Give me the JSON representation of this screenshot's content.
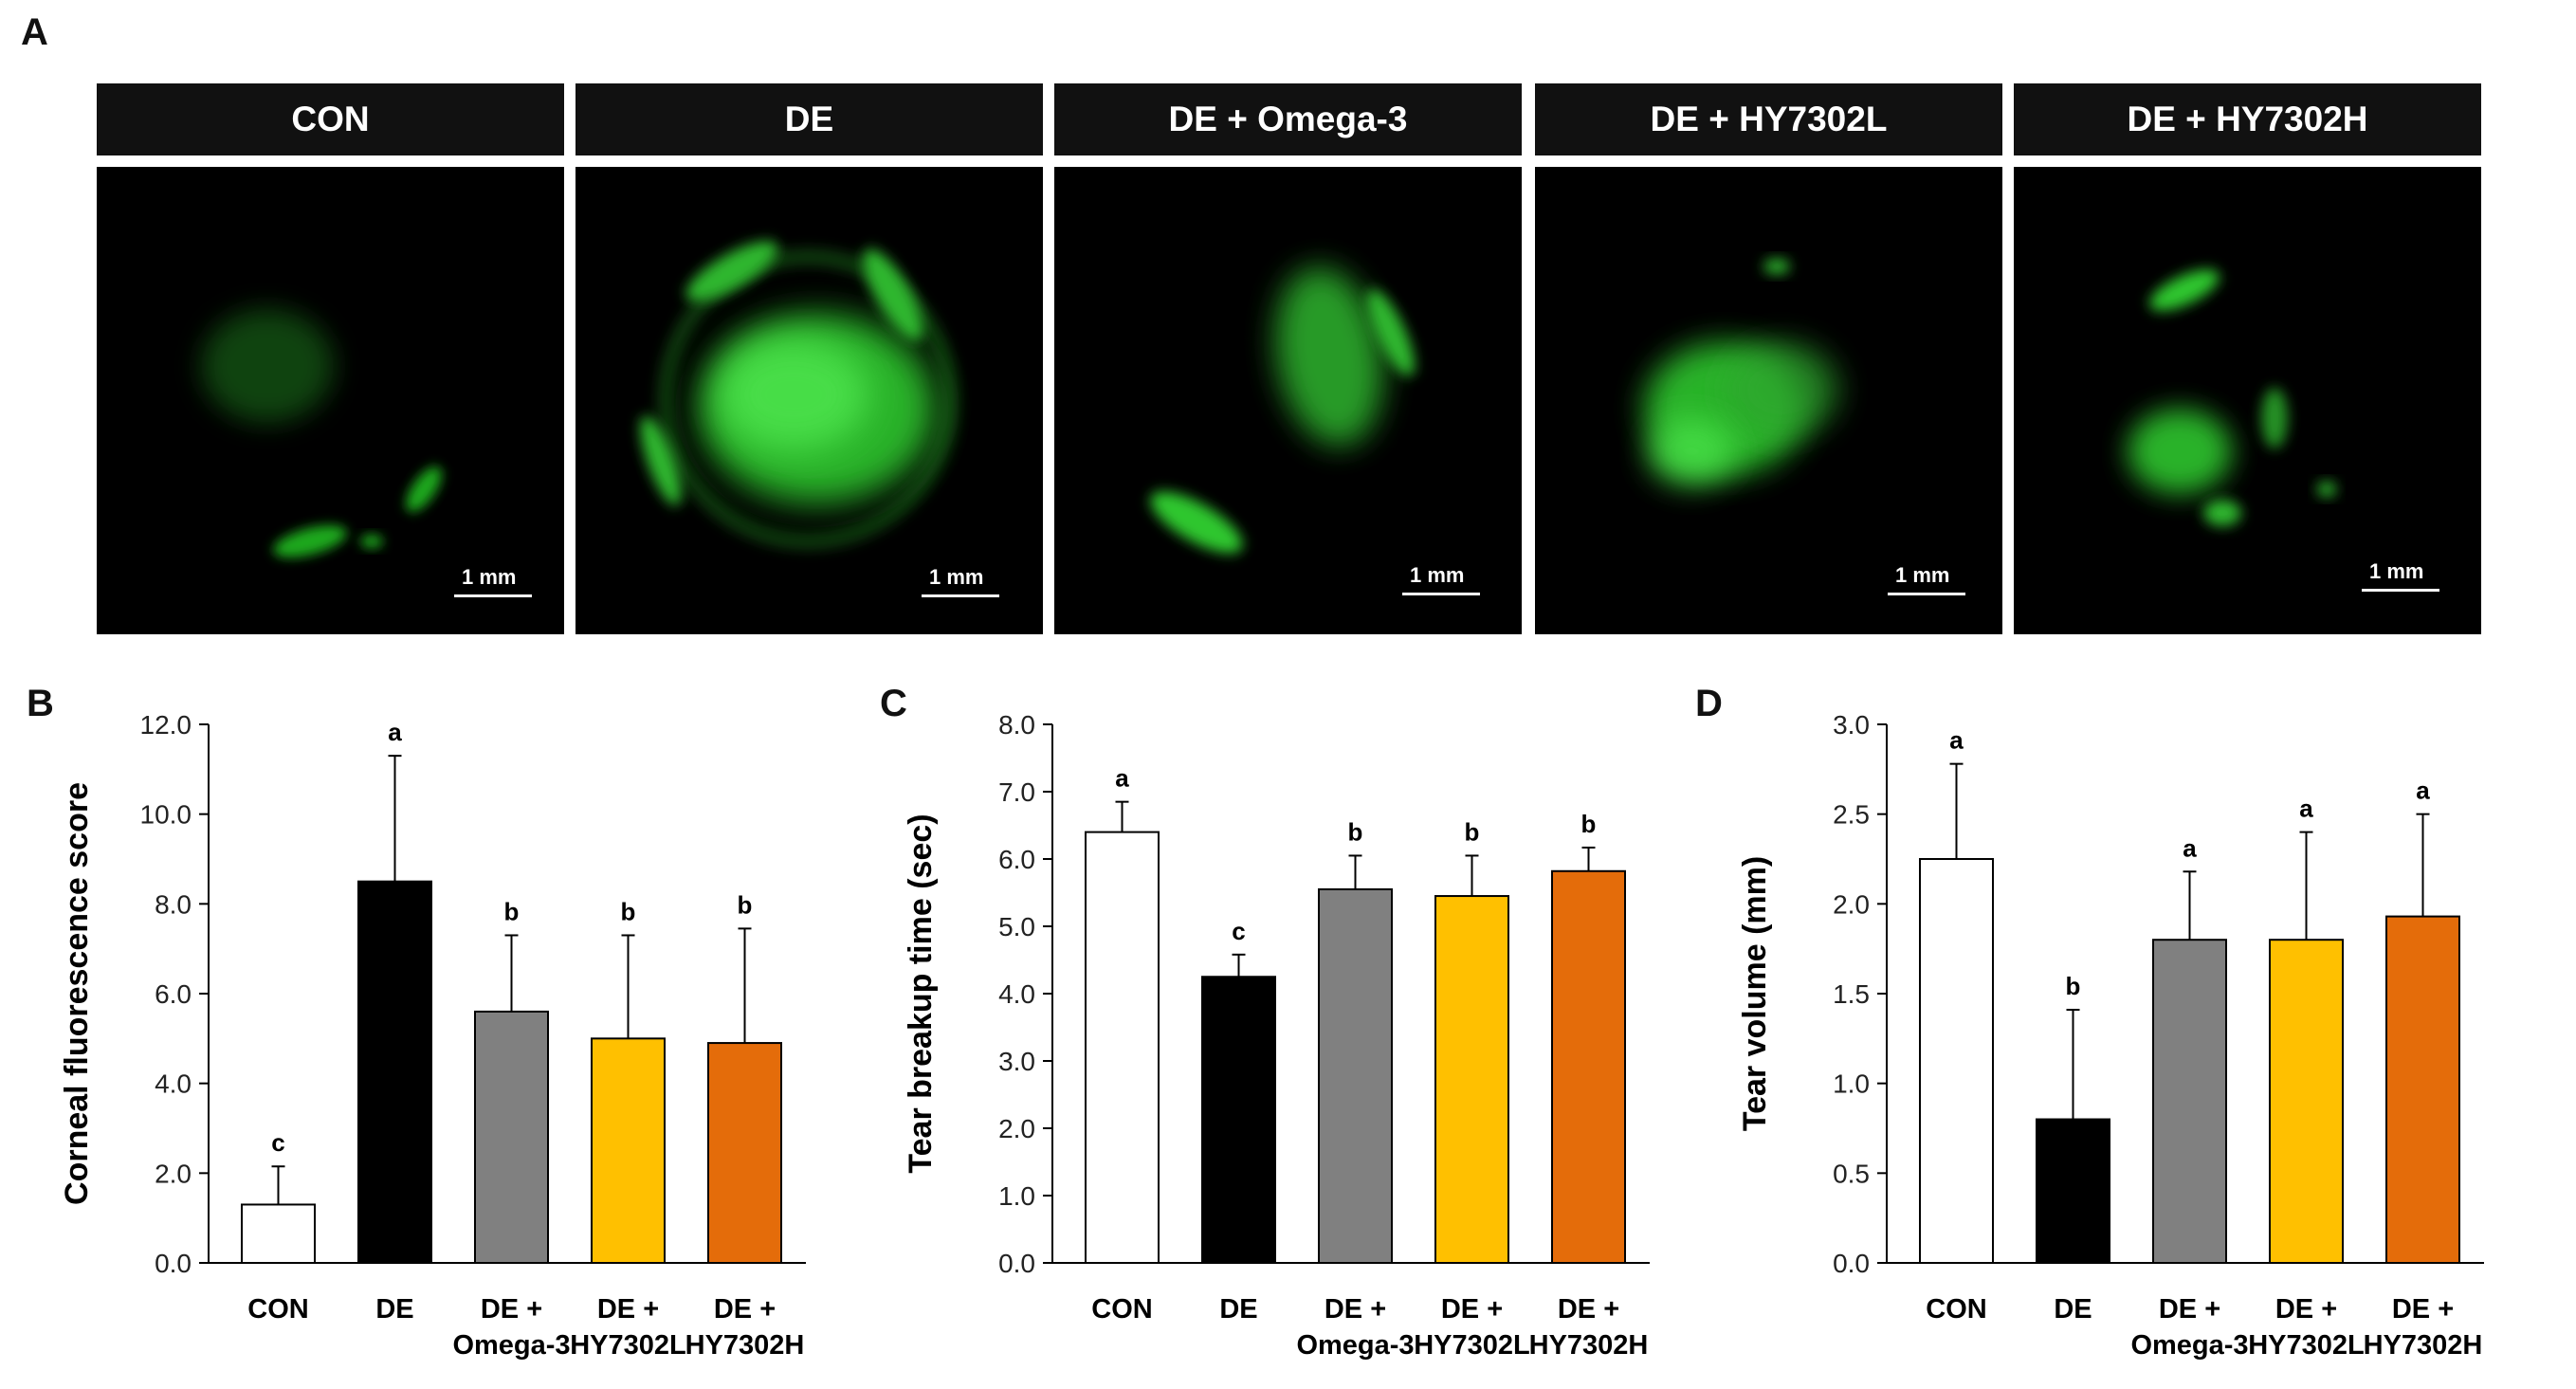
{
  "panel_labels": {
    "a": "A",
    "b": "B",
    "c": "C",
    "d": "D"
  },
  "images": {
    "scale_label": "1 mm",
    "headers": [
      "CON",
      "DE",
      "DE + Omega-3",
      "DE + HY7302L",
      "DE + HY7302H"
    ],
    "stain_color": "#2fd62f"
  },
  "chart_data": [
    {
      "type": "bar",
      "panel": "B",
      "ylabel": "Corneal fluorescence score",
      "categories": [
        [
          "CON"
        ],
        [
          "DE"
        ],
        [
          "DE +",
          "Omega-3"
        ],
        [
          "DE +",
          "HY7302L"
        ],
        [
          "DE +",
          "HY7302H"
        ]
      ],
      "values": [
        1.3,
        8.5,
        5.6,
        5.0,
        4.9
      ],
      "errors": [
        0.85,
        2.8,
        1.7,
        2.3,
        2.55
      ],
      "letters": [
        "c",
        "a",
        "b",
        "b",
        "b"
      ],
      "ylim": [
        0,
        12
      ],
      "yticks": [
        "0.0",
        "2.0",
        "4.0",
        "6.0",
        "8.0",
        "10.0",
        "12.0"
      ],
      "colors": [
        "#ffffff",
        "#000000",
        "#808080",
        "#ffc000",
        "#e46c0a"
      ]
    },
    {
      "type": "bar",
      "panel": "C",
      "ylabel": "Tear breakup time (sec)",
      "categories": [
        [
          "CON"
        ],
        [
          "DE"
        ],
        [
          "DE +",
          "Omega-3"
        ],
        [
          "DE +",
          "HY7302L"
        ],
        [
          "DE +",
          "HY7302H"
        ]
      ],
      "values": [
        6.4,
        4.25,
        5.55,
        5.45,
        5.82
      ],
      "errors": [
        0.45,
        0.33,
        0.5,
        0.6,
        0.35
      ],
      "letters": [
        "a",
        "c",
        "b",
        "b",
        "b"
      ],
      "ylim": [
        0,
        8
      ],
      "yticks": [
        "0.0",
        "1.0",
        "2.0",
        "3.0",
        "4.0",
        "5.0",
        "6.0",
        "7.0",
        "8.0"
      ],
      "colors": [
        "#ffffff",
        "#000000",
        "#808080",
        "#ffc000",
        "#e46c0a"
      ]
    },
    {
      "type": "bar",
      "panel": "D",
      "ylabel": "Tear  volume (mm)",
      "categories": [
        [
          "CON"
        ],
        [
          "DE"
        ],
        [
          "DE +",
          "Omega-3"
        ],
        [
          "DE +",
          "HY7302L"
        ],
        [
          "DE +",
          "HY7302H"
        ]
      ],
      "values": [
        2.25,
        0.8,
        1.8,
        1.8,
        1.93
      ],
      "errors": [
        0.53,
        0.61,
        0.38,
        0.6,
        0.57
      ],
      "letters": [
        "a",
        "b",
        "a",
        "a",
        "a"
      ],
      "ylim": [
        0,
        3
      ],
      "yticks": [
        "0.0",
        "0.5",
        "1.0",
        "1.5",
        "2.0",
        "2.5",
        "3.0"
      ],
      "colors": [
        "#ffffff",
        "#000000",
        "#808080",
        "#ffc000",
        "#e46c0a"
      ]
    }
  ]
}
